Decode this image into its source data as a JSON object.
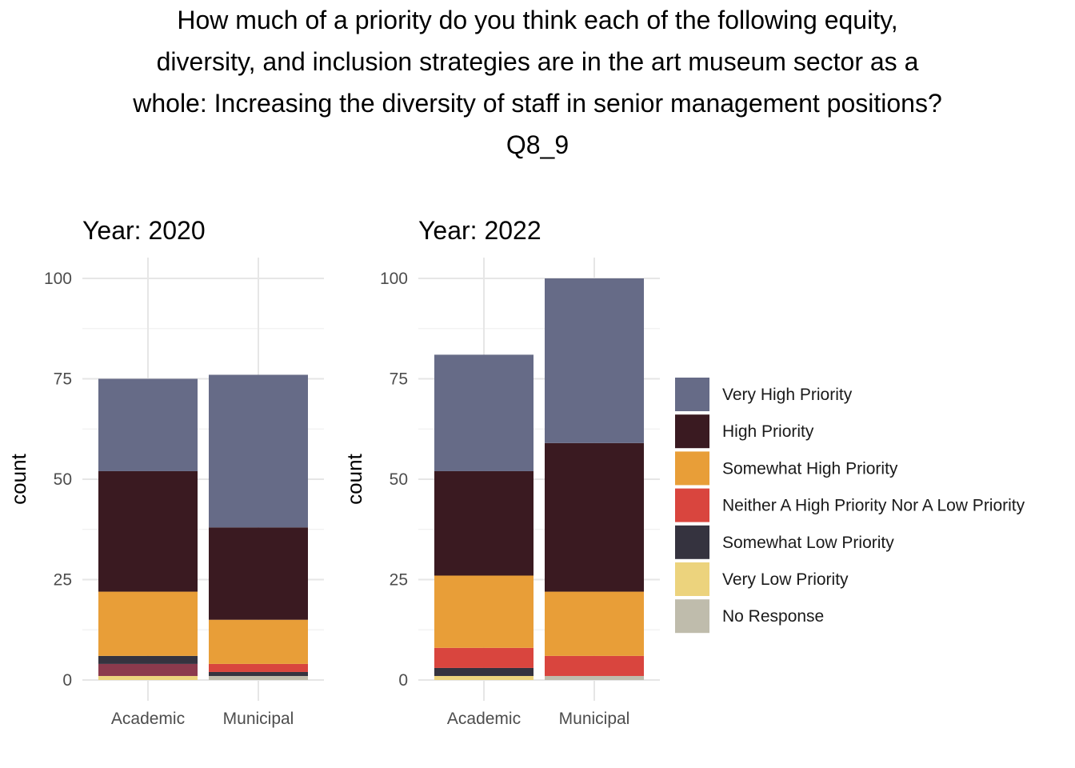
{
  "chart_data": {
    "type": "bar",
    "stacked": true,
    "title_lines": [
      "How much of a priority do you think each of the following equity,",
      "diversity, and inclusion strategies are in the art museum sector as a",
      "whole: Increasing the diversity of staff in senior management positions?",
      "Q8_9"
    ],
    "ylabel": "count",
    "ylim": [
      0,
      100
    ],
    "yticks": [
      0,
      25,
      50,
      75,
      100
    ],
    "categories": [
      "Academic",
      "Municipal"
    ],
    "grid": true,
    "legend_position": "right",
    "legend": [
      {
        "name": "Very High Priority",
        "color": "#666b87"
      },
      {
        "name": "High Priority",
        "color": "#3a1a21"
      },
      {
        "name": "Somewhat High Priority",
        "color": "#e89e38"
      },
      {
        "name": "Neither A High Priority Nor A Low Priority",
        "color": "#d9453e"
      },
      {
        "name": "Somewhat Low Priority",
        "color": "#35333f"
      },
      {
        "name": "Very Low Priority",
        "color": "#ecd37d"
      },
      {
        "name": "No Response",
        "color": "#bfbcac"
      }
    ],
    "panels": [
      {
        "title": "Year: 2020",
        "bars": [
          {
            "category": "Academic",
            "segments": [
              {
                "name": "Very Low Priority",
                "value": 1,
                "color": "#ecd37d"
              },
              {
                "name": "Neither A High Priority Nor A Low Priority",
                "value": 3,
                "color": "#8b3a4d"
              },
              {
                "name": "Somewhat Low Priority",
                "value": 2,
                "color": "#35333f"
              },
              {
                "name": "Somewhat High Priority",
                "value": 16,
                "color": "#e89e38"
              },
              {
                "name": "High Priority",
                "value": 30,
                "color": "#3a1a21"
              },
              {
                "name": "Very High Priority",
                "value": 23,
                "color": "#666b87"
              }
            ]
          },
          {
            "category": "Municipal",
            "segments": [
              {
                "name": "No Response",
                "value": 1,
                "color": "#bfbcac"
              },
              {
                "name": "Somewhat Low Priority",
                "value": 1,
                "color": "#35333f"
              },
              {
                "name": "Neither A High Priority Nor A Low Priority",
                "value": 2,
                "color": "#d9453e"
              },
              {
                "name": "Somewhat High Priority",
                "value": 11,
                "color": "#e89e38"
              },
              {
                "name": "High Priority",
                "value": 23,
                "color": "#3a1a21"
              },
              {
                "name": "Very High Priority",
                "value": 38,
                "color": "#666b87"
              }
            ]
          }
        ]
      },
      {
        "title": "Year: 2022",
        "bars": [
          {
            "category": "Academic",
            "segments": [
              {
                "name": "Very Low Priority",
                "value": 1,
                "color": "#ecd37d"
              },
              {
                "name": "Somewhat Low Priority",
                "value": 2,
                "color": "#35333f"
              },
              {
                "name": "Neither A High Priority Nor A Low Priority",
                "value": 5,
                "color": "#d9453e"
              },
              {
                "name": "Somewhat High Priority",
                "value": 18,
                "color": "#e89e38"
              },
              {
                "name": "High Priority",
                "value": 26,
                "color": "#3a1a21"
              },
              {
                "name": "Very High Priority",
                "value": 29,
                "color": "#666b87"
              }
            ]
          },
          {
            "category": "Municipal",
            "segments": [
              {
                "name": "No Response",
                "value": 1,
                "color": "#bfbcac"
              },
              {
                "name": "Neither A High Priority Nor A Low Priority",
                "value": 5,
                "color": "#d9453e"
              },
              {
                "name": "Somewhat High Priority",
                "value": 16,
                "color": "#e89e38"
              },
              {
                "name": "High Priority",
                "value": 37,
                "color": "#3a1a21"
              },
              {
                "name": "Very High Priority",
                "value": 41,
                "color": "#666b87"
              }
            ]
          }
        ]
      }
    ]
  }
}
